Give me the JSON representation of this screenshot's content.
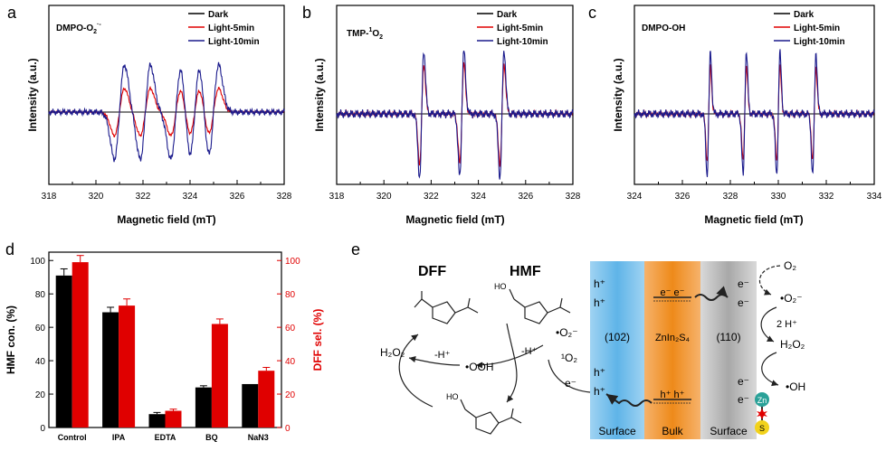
{
  "panel_a": {
    "letter": "a",
    "title": "DMPO-O",
    "title_sub": "2",
    "title_sup": "·-",
    "xlabel": "Magnetic field (mT)",
    "ylabel": "Intensity (a.u.)",
    "legend": [
      "Dark",
      "Light-5min",
      "Light-10min"
    ],
    "xticks": [
      "318",
      "320",
      "322",
      "324",
      "326",
      "328"
    ]
  },
  "panel_b": {
    "letter": "b",
    "title": "TMP-",
    "title_sup": "1",
    "title_rest": "O",
    "title_sub": "2",
    "xlabel": "Magnetic field (mT)",
    "ylabel": "Intensity (a.u.)",
    "legend": [
      "Dark",
      "Light-5min",
      "Light-10min"
    ],
    "xticks": [
      "318",
      "320",
      "322",
      "324",
      "326",
      "328"
    ]
  },
  "panel_c": {
    "letter": "c",
    "title": "DMPO-OH",
    "xlabel": "Magnetic field (mT)",
    "ylabel": "Intensity (a.u.)",
    "legend": [
      "Dark",
      "Light-5min",
      "Light-10min"
    ],
    "xticks": [
      "324",
      "326",
      "328",
      "330",
      "332",
      "334"
    ]
  },
  "panel_d": {
    "letter": "d",
    "ylabel_left": "HMF con. (%)",
    "ylabel_right": "DFF sel. (%)",
    "yticks": [
      "0",
      "20",
      "40",
      "60",
      "80",
      "100"
    ]
  },
  "chart_data": [
    {
      "type": "line",
      "title": "DMPO-O2·-",
      "xlabel": "Magnetic field (mT)",
      "ylabel": "Intensity (a.u.)",
      "xlim": [
        318,
        328
      ],
      "series": [
        {
          "name": "Dark",
          "peaks_mT": []
        },
        {
          "name": "Light-5min",
          "peaks_mT": [
            321.0,
            322.1,
            323.4,
            324.2,
            325.0
          ]
        },
        {
          "name": "Light-10min",
          "peaks_mT": [
            321.0,
            322.1,
            323.4,
            324.2,
            325.0
          ]
        }
      ]
    },
    {
      "type": "line",
      "title": "TMP-1O2",
      "xlabel": "Magnetic field (mT)",
      "ylabel": "Intensity (a.u.)",
      "xlim": [
        318,
        328
      ],
      "series": [
        {
          "name": "Dark",
          "peaks_mT": []
        },
        {
          "name": "Light-5min",
          "peaks_mT": [
            321.6,
            323.3,
            325.0
          ]
        },
        {
          "name": "Light-10min",
          "peaks_mT": [
            321.6,
            323.3,
            325.0
          ]
        }
      ]
    },
    {
      "type": "line",
      "title": "DMPO-OH",
      "xlabel": "Magnetic field (mT)",
      "ylabel": "Intensity (a.u.)",
      "xlim": [
        324,
        334
      ],
      "series": [
        {
          "name": "Dark",
          "peaks_mT": []
        },
        {
          "name": "Light-5min",
          "peaks_mT": [
            327.1,
            328.6,
            330.0,
            331.5
          ]
        },
        {
          "name": "Light-10min",
          "peaks_mT": [
            327.1,
            328.6,
            330.0,
            331.5
          ]
        }
      ]
    },
    {
      "type": "bar",
      "categories": [
        "Control",
        "IPA",
        "EDTA",
        "BQ",
        "NaN3"
      ],
      "series": [
        {
          "name": "HMF con. (%)",
          "axis": "left",
          "color": "#000000",
          "values": [
            91,
            69,
            8,
            24,
            26
          ],
          "errors": [
            4,
            3,
            1,
            1,
            0
          ]
        },
        {
          "name": "DFF sel. (%)",
          "axis": "right",
          "color": "#e00000",
          "values": [
            99,
            73,
            10,
            62,
            34
          ],
          "errors": [
            4,
            4,
            1,
            3,
            2
          ]
        }
      ],
      "ylabel": "HMF con. (%)",
      "ylabel_right": "DFF sel. (%)",
      "ylim": [
        0,
        105
      ],
      "ylim_right": [
        0,
        105
      ]
    }
  ],
  "panel_e": {
    "letter": "e",
    "dff_label": "DFF",
    "hmf_label": "HMF",
    "h2o2_left": "H₂O₂",
    "minus_h1": "-H⁺",
    "ooh": "•OOH",
    "minus_h2": "-H⁺",
    "o2_radical": "•O₂⁻",
    "singlet_o2": "¹O₂",
    "e_minus": "e⁻",
    "hole_top1": "h⁺",
    "hole_top2": "h⁺",
    "hole_bot1": "h⁺",
    "hole_bot2": "h⁺",
    "facet_left": "(102)",
    "bulk_label": "ZnIn₂S₄",
    "facet_right": "(110)",
    "surface_left": "Surface",
    "bulk_bottom": "Bulk",
    "surface_right": "Surface",
    "cb_electrons": "e⁻  e⁻",
    "vb_holes": "h⁺  h⁺",
    "e_r1": "e⁻",
    "e_r2": "e⁻",
    "e_r3": "e⁻",
    "e_r4": "e⁻",
    "o2": "O₂",
    "o2_rad_right": "•O₂⁻",
    "two_h": "2 H⁺",
    "h2o2_right": "H₂O₂",
    "oh_rad": "•OH",
    "zn": "Zn",
    "s": "S",
    "ho_hmf": "HO",
    "ho_int": "HO"
  }
}
